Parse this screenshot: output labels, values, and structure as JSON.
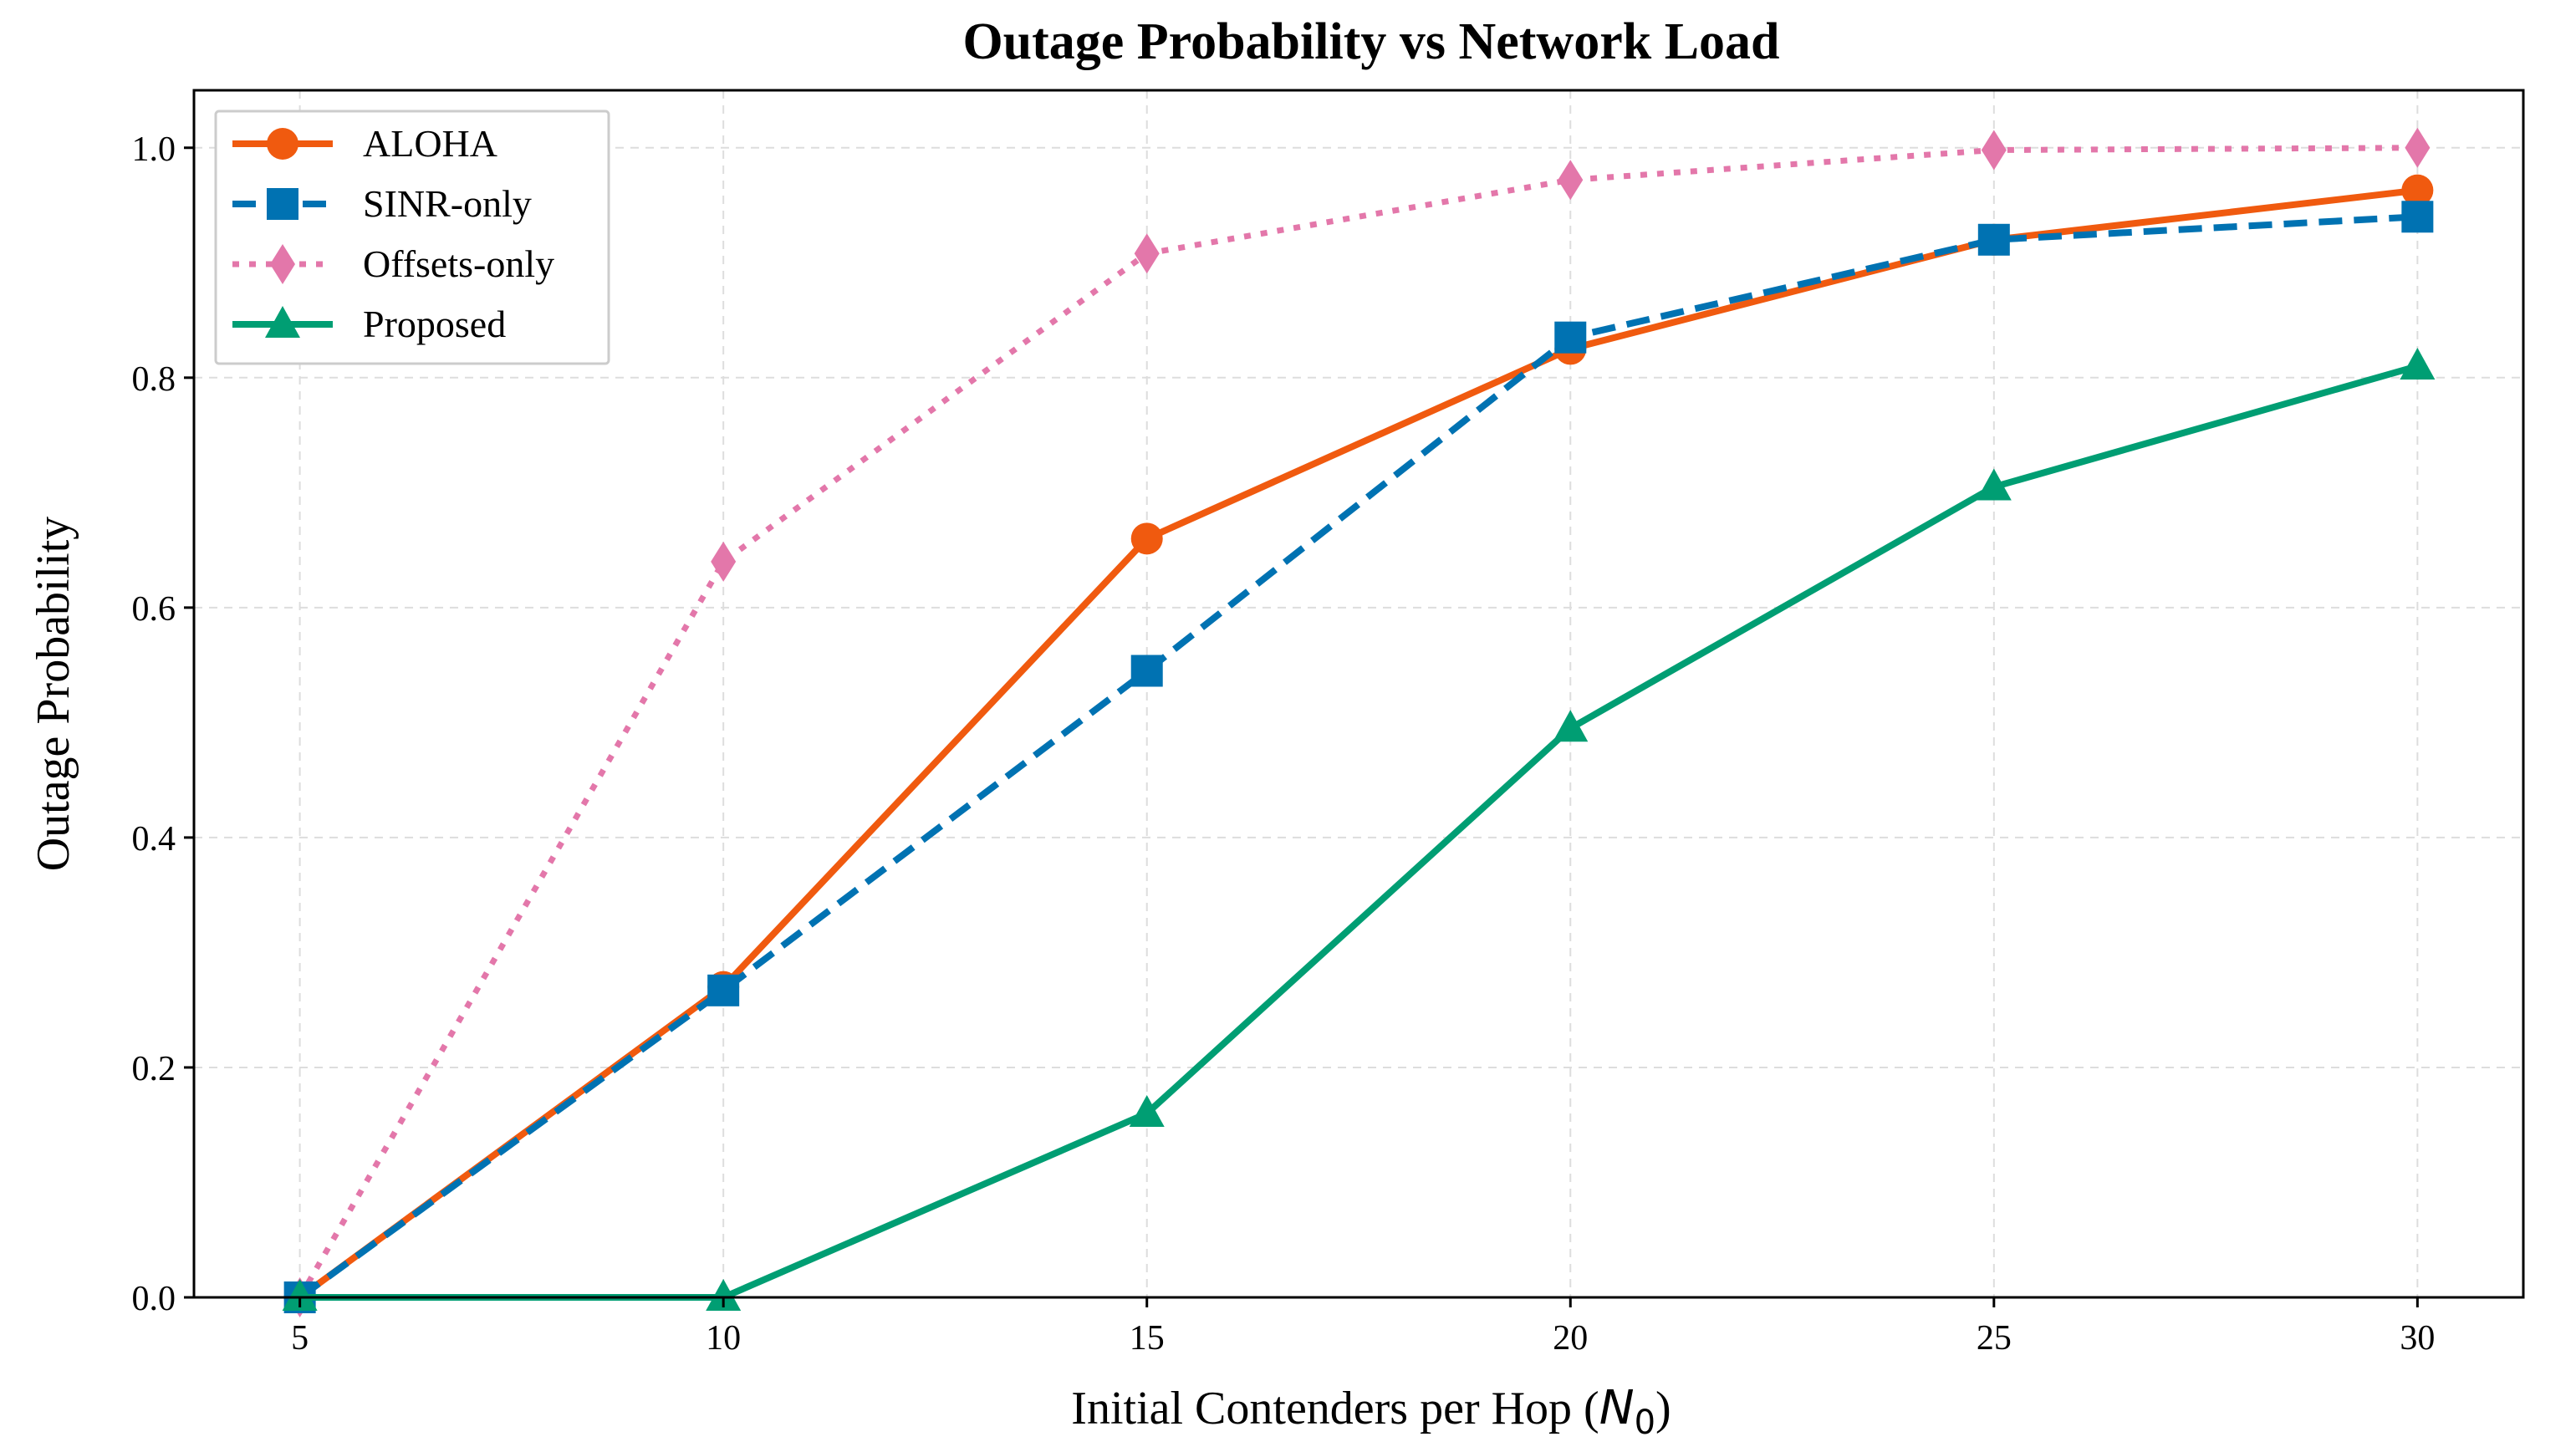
{
  "chart_data": {
    "type": "line",
    "title": "Outage Probability vs Network Load",
    "xlabel": "Initial Contenders per Hop (",
    "xlabel_symbol": "N",
    "xlabel_subscript": "0",
    "xlabel_close": ")",
    "ylabel": "Outage Probability",
    "x": [
      5,
      10,
      15,
      20,
      25,
      30
    ],
    "xlim": [
      3.75,
      31.25
    ],
    "ylim": [
      0.0,
      1.05
    ],
    "x_ticks": [
      "5",
      "10",
      "15",
      "20",
      "25",
      "30"
    ],
    "y_ticks": [
      "0.0",
      "0.2",
      "0.4",
      "0.6",
      "0.8",
      "1.0"
    ],
    "x_tick_values": [
      5,
      10,
      15,
      20,
      25,
      30
    ],
    "y_tick_values": [
      0.0,
      0.2,
      0.4,
      0.6,
      0.8,
      1.0
    ],
    "grid": true,
    "legend_position": "top-left",
    "series": [
      {
        "name": "ALOHA",
        "values": [
          0.0,
          0.27,
          0.66,
          0.825,
          0.92,
          0.963
        ],
        "color": "#F05A0F",
        "line": "solid",
        "marker": "circle"
      },
      {
        "name": "SINR-only",
        "values": [
          0.0,
          0.267,
          0.545,
          0.835,
          0.92,
          0.94
        ],
        "color": "#0072B2",
        "line": "dashed",
        "marker": "square"
      },
      {
        "name": "Offsets-only",
        "values": [
          0.0,
          0.64,
          0.908,
          0.972,
          0.998,
          1.0
        ],
        "color": "#E377AA",
        "line": "dotted",
        "marker": "diamond"
      },
      {
        "name": "Proposed",
        "values": [
          0.0,
          0.0,
          0.16,
          0.495,
          0.705,
          0.81
        ],
        "color": "#009E73",
        "line": "solid",
        "marker": "triangle"
      }
    ]
  }
}
